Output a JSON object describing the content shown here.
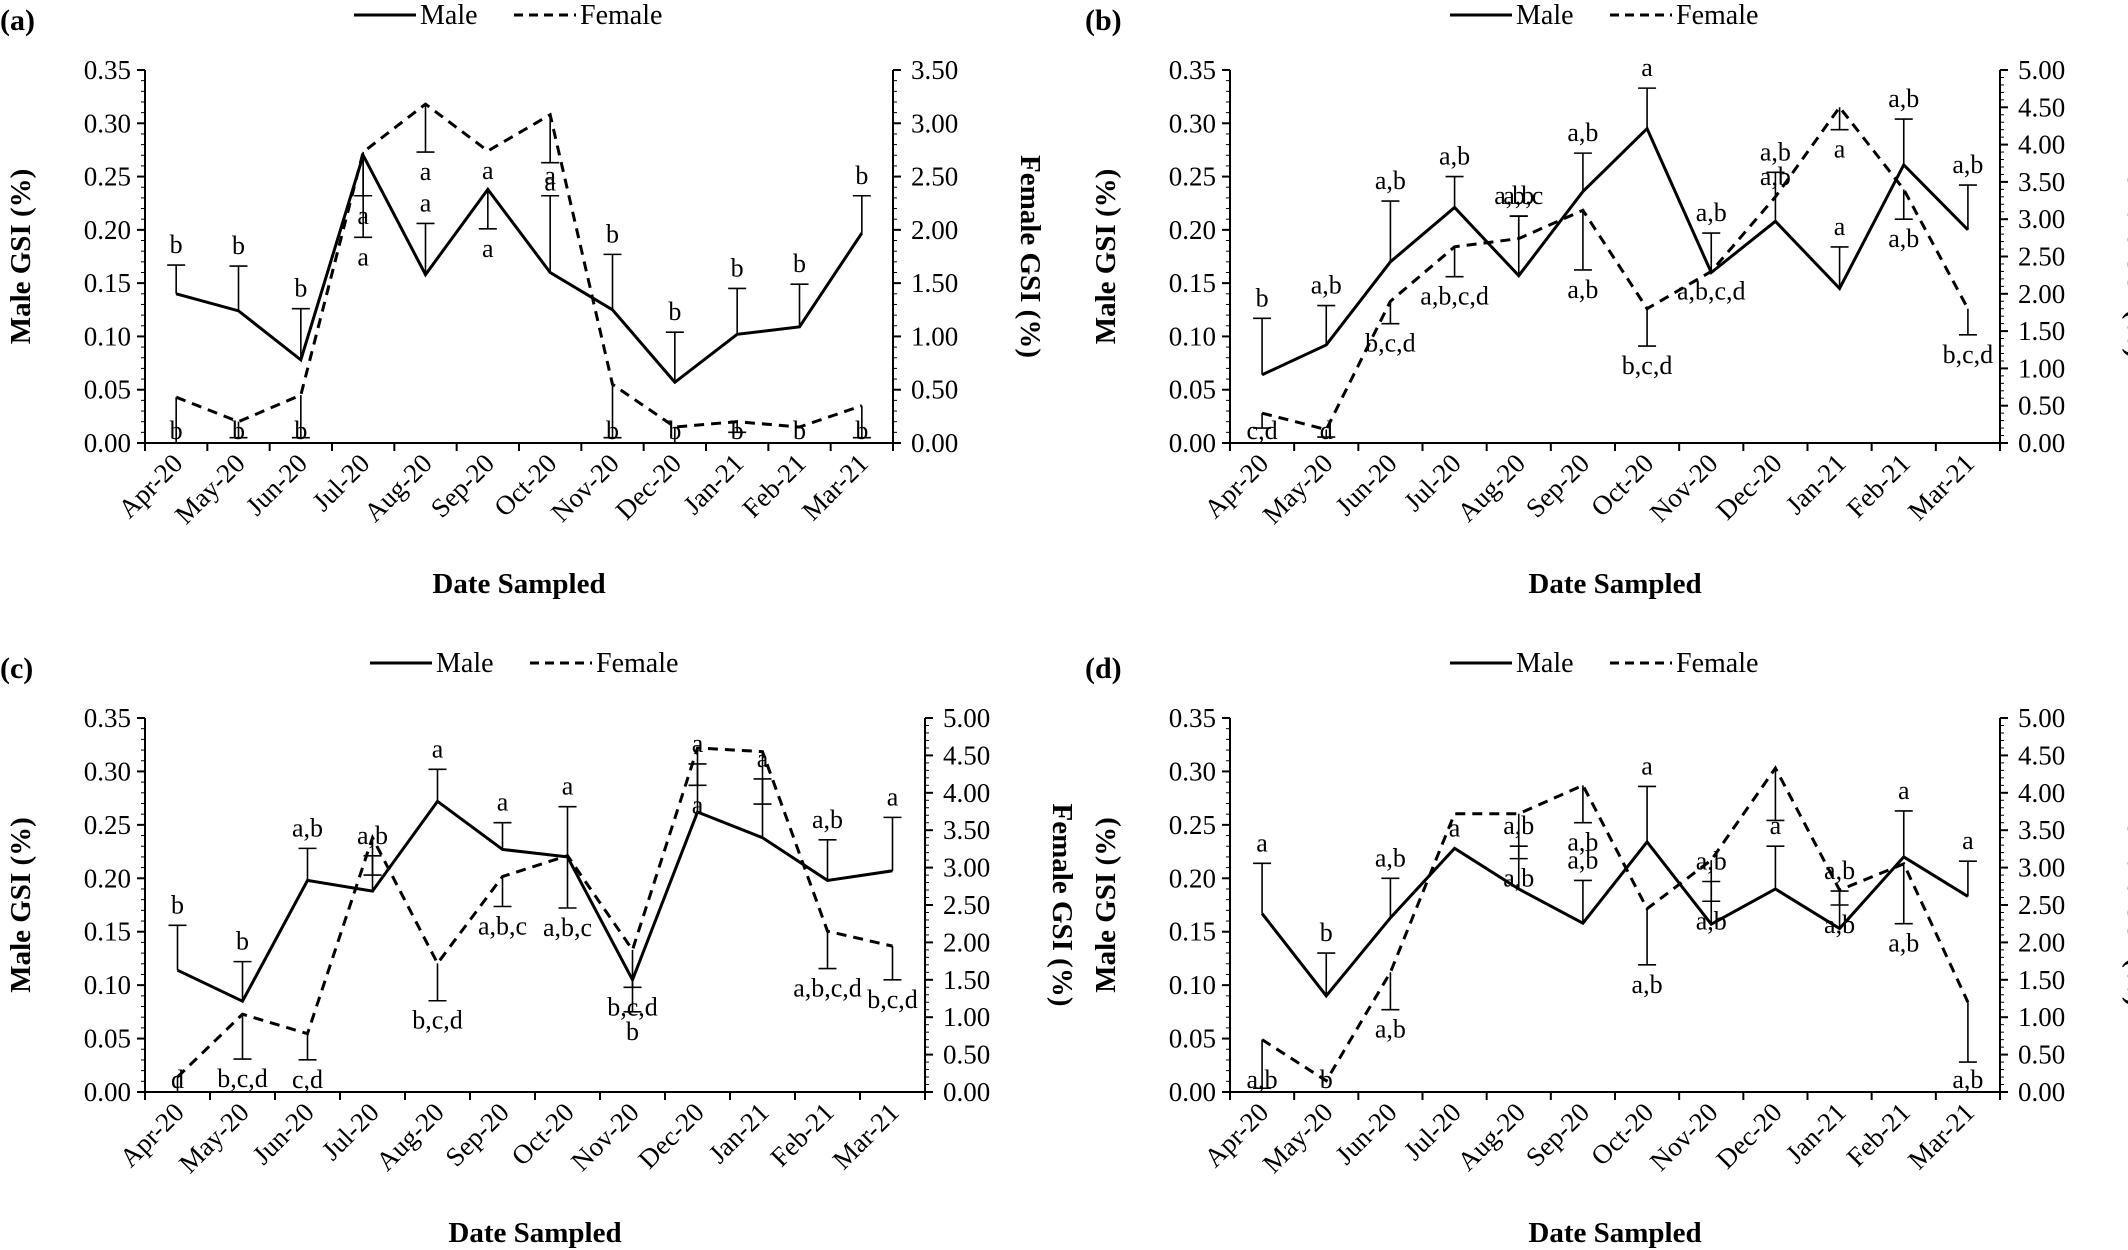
{
  "chart_data": [
    {
      "type": "line",
      "panel_label": "(a)",
      "xlabel": "Date Sampled",
      "ylabel": "Male GSI (%)",
      "y2label": "Female GSI (%)",
      "categories": [
        "Apr-20",
        "May-20",
        "Jun-20",
        "Jul-20",
        "Aug-20",
        "Sep-20",
        "Oct-20",
        "Nov-20",
        "Dec-20",
        "Jan-21",
        "Feb-21",
        "Mar-21"
      ],
      "ylim": [
        0,
        0.35
      ],
      "y2lim": [
        0,
        3.5
      ],
      "yticks": [
        "0.00",
        "0.05",
        "0.10",
        "0.15",
        "0.20",
        "0.25",
        "0.30",
        "0.35"
      ],
      "y2ticks": [
        "0.00",
        "0.50",
        "1.00",
        "1.50",
        "2.00",
        "2.50",
        "3.00",
        "3.50"
      ],
      "grid": false,
      "legend_position": "top-center",
      "series": [
        {
          "name": "Male",
          "axis": "left",
          "style": "solid",
          "values": [
            0.14,
            0.124,
            0.078,
            0.27,
            0.158,
            0.238,
            0.16,
            0.125,
            0.057,
            0.102,
            0.109,
            0.197
          ],
          "error": [
            0.027,
            0.042,
            0.048,
            0.038,
            0.048,
            0.037,
            0.072,
            0.052,
            0.047,
            0.043,
            0.04,
            0.035
          ],
          "error_dir": [
            "up",
            "up",
            "up",
            "down",
            "up",
            "down",
            "up",
            "up",
            "up",
            "up",
            "up",
            "up"
          ],
          "labels": [
            "b",
            "b",
            "b",
            "a",
            "a",
            "a",
            "a",
            "b",
            "b",
            "b",
            "b",
            "b"
          ]
        },
        {
          "name": "Female",
          "axis": "right",
          "style": "dashed",
          "values": [
            0.43,
            0.2,
            0.45,
            2.73,
            3.18,
            2.74,
            3.08,
            0.55,
            0.15,
            0.2,
            0.15,
            0.35
          ],
          "error": [
            0.43,
            0.15,
            0.4,
            0.8,
            0.45,
            0.0,
            0.45,
            0.5,
            0.15,
            0.1,
            0.0,
            0.3
          ],
          "error_dir": [
            "down",
            "down",
            "down",
            "down",
            "down",
            "down",
            "down",
            "down",
            "down",
            "down",
            "down",
            "down"
          ],
          "labels": [
            "b",
            "b",
            "b",
            "a",
            "a",
            "a",
            "a",
            "b",
            "b",
            "b",
            "b",
            "b"
          ]
        }
      ]
    },
    {
      "type": "line",
      "panel_label": "(b)",
      "xlabel": "Date Sampled",
      "ylabel": "Male GSI (%)",
      "y2label": "Female GSI (%)",
      "categories": [
        "Apr-20",
        "May-20",
        "Jun-20",
        "Jul-20",
        "Aug-20",
        "Sep-20",
        "Oct-20",
        "Nov-20",
        "Dec-20",
        "Jan-21",
        "Feb-21",
        "Mar-21"
      ],
      "ylim": [
        0,
        0.35
      ],
      "y2lim": [
        0,
        5
      ],
      "yticks": [
        "0.00",
        "0.05",
        "0.10",
        "0.15",
        "0.20",
        "0.25",
        "0.30",
        "0.35"
      ],
      "y2ticks": [
        "0.00",
        "0.50",
        "1.00",
        "1.50",
        "2.00",
        "2.50",
        "3.00",
        "3.50",
        "4.00",
        "4.50",
        "5.00"
      ],
      "grid": false,
      "legend_position": "top-center",
      "series": [
        {
          "name": "Male",
          "axis": "left",
          "style": "solid",
          "values": [
            0.064,
            0.092,
            0.17,
            0.221,
            0.157,
            0.236,
            0.295,
            0.16,
            0.208,
            0.145,
            0.261,
            0.2
          ],
          "error": [
            0.053,
            0.037,
            0.057,
            0.029,
            0.056,
            0.036,
            0.038,
            0.037,
            0.046,
            0.039,
            0.043,
            0.042
          ],
          "error_dir": [
            "up",
            "up",
            "up",
            "up",
            "up",
            "up",
            "up",
            "up",
            "up",
            "up",
            "up",
            "up"
          ],
          "labels": [
            "b",
            "a,b",
            "a,b",
            "a,b",
            "a,b",
            "a,b",
            "a",
            "a,b",
            "a,b",
            "a",
            "a,b",
            "a,b"
          ]
        },
        {
          "name": "Female",
          "axis": "right",
          "style": "dashed",
          "values": [
            0.4,
            0.18,
            1.9,
            2.63,
            2.74,
            3.12,
            1.8,
            2.3,
            3.3,
            4.5,
            3.4,
            1.8
          ],
          "error": [
            0.2,
            0.1,
            0.3,
            0.4,
            0.3,
            0.8,
            0.5,
            0.0,
            0.0,
            0.3,
            0.4,
            0.35
          ],
          "error_dir": [
            "down",
            "down",
            "down",
            "down",
            "up",
            "down",
            "down",
            "down",
            "up",
            "down",
            "down",
            "down"
          ],
          "labels": [
            "c,d",
            "d",
            "b,c,d",
            "a,b,c,d",
            "a,b,c",
            "a,b",
            "b,c,d",
            "a,b,c,d",
            "a,b",
            "a",
            "a,b",
            "b,c,d"
          ]
        }
      ]
    },
    {
      "type": "line",
      "panel_label": "(c)",
      "xlabel": "Date Sampled",
      "ylabel": "Male GSI (%)",
      "y2label": "Female GSI (%)",
      "categories": [
        "Apr-20",
        "May-20",
        "Jun-20",
        "Jul-20",
        "Aug-20",
        "Sep-20",
        "Oct-20",
        "Nov-20",
        "Dec-20",
        "Jan-21",
        "Feb-21",
        "Mar-21"
      ],
      "ylim": [
        0,
        0.35
      ],
      "y2lim": [
        0,
        5
      ],
      "yticks": [
        "0.00",
        "0.05",
        "0.10",
        "0.15",
        "0.20",
        "0.25",
        "0.30",
        "0.35"
      ],
      "y2ticks": [
        "0.00",
        "0.50",
        "1.00",
        "1.50",
        "2.00",
        "2.50",
        "3.00",
        "3.50",
        "4.00",
        "4.50",
        "5.00"
      ],
      "grid": false,
      "legend_position": "top-center",
      "series": [
        {
          "name": "Male",
          "axis": "left",
          "style": "solid",
          "values": [
            0.114,
            0.085,
            0.198,
            0.188,
            0.272,
            0.227,
            0.22,
            0.105,
            0.262,
            0.238,
            0.198,
            0.207
          ],
          "error": [
            0.042,
            0.037,
            0.03,
            0.033,
            0.03,
            0.025,
            0.047,
            0.03,
            0.045,
            0.055,
            0.038,
            0.05
          ],
          "error_dir": [
            "up",
            "up",
            "up",
            "up",
            "up",
            "up",
            "up",
            "down",
            "up",
            "up",
            "up",
            "up"
          ],
          "labels": [
            "b",
            "b",
            "a,b",
            "a,b",
            "a",
            "a",
            "a",
            "b",
            "a",
            "a",
            "a,b",
            "a"
          ]
        },
        {
          "name": "Female",
          "axis": "right",
          "style": "dashed",
          "values": [
            0.2,
            1.04,
            0.78,
            3.4,
            1.72,
            2.88,
            3.16,
            1.9,
            4.6,
            4.55,
            2.15,
            1.95
          ],
          "error": [
            0.2,
            0.6,
            0.35,
            0.5,
            0.5,
            0.4,
            0.7,
            0.5,
            0.5,
            0.7,
            0.5,
            0.45
          ],
          "error_dir": [
            "down",
            "down",
            "down",
            "down",
            "down",
            "down",
            "down",
            "down",
            "down",
            "down",
            "down",
            "down"
          ],
          "labels": [
            "d",
            "b,c,d",
            "c,d",
            "",
            "b,c,d",
            "a,b,c",
            "a,b,c",
            "b,c,d",
            "a",
            "",
            "a,b,c,d",
            "b,c,d"
          ]
        }
      ]
    },
    {
      "type": "line",
      "panel_label": "(d)",
      "xlabel": "Date Sampled",
      "ylabel": "Male GSI (%)",
      "y2label": "Female GSI (%)",
      "categories": [
        "Apr-20",
        "May-20",
        "Jun-20",
        "Jul-20",
        "Aug-20",
        "Sep-20",
        "Oct-20",
        "Nov-20",
        "Dec-20",
        "Jan-21",
        "Feb-21",
        "Mar-21"
      ],
      "ylim": [
        0,
        0.35
      ],
      "y2lim": [
        0,
        5
      ],
      "yticks": [
        "0.00",
        "0.05",
        "0.10",
        "0.15",
        "0.20",
        "0.25",
        "0.30",
        "0.35"
      ],
      "y2ticks": [
        "0.00",
        "0.50",
        "1.00",
        "1.50",
        "2.00",
        "2.50",
        "3.00",
        "3.50",
        "4.00",
        "4.50",
        "5.00"
      ],
      "grid": false,
      "legend_position": "top-center",
      "series": [
        {
          "name": "Male",
          "axis": "left",
          "style": "solid",
          "values": [
            0.167,
            0.09,
            0.163,
            0.228,
            0.19,
            0.158,
            0.234,
            0.157,
            0.19,
            0.153,
            0.22,
            0.183
          ],
          "error": [
            0.047,
            0.04,
            0.037,
            0.0,
            0.04,
            0.04,
            0.052,
            0.04,
            0.04,
            0.035,
            0.043,
            0.033
          ],
          "error_dir": [
            "up",
            "up",
            "up",
            "up",
            "up",
            "up",
            "up",
            "up",
            "up",
            "up",
            "up",
            "up"
          ],
          "labels": [
            "a",
            "b",
            "a,b",
            "a",
            "a,b",
            "a,b",
            "a",
            "a,b",
            "a",
            "a,b",
            "a",
            "a"
          ]
        },
        {
          "name": "Female",
          "axis": "right",
          "style": "dashed",
          "values": [
            0.7,
            0.15,
            1.6,
            3.72,
            3.72,
            4.1,
            2.45,
            3.1,
            4.33,
            2.7,
            3.05,
            1.2
          ],
          "error": [
            0.65,
            0.0,
            0.5,
            0.0,
            0.6,
            0.5,
            0.75,
            0.55,
            0.7,
            0.2,
            0.8,
            0.8
          ],
          "error_dir": [
            "down",
            "down",
            "down",
            "down",
            "down",
            "down",
            "down",
            "down",
            "down",
            "down",
            "down",
            "down"
          ],
          "labels": [
            "a,b",
            "b",
            "a,b",
            "",
            "a,b",
            "a,b",
            "a,b",
            "a,b",
            "",
            "a,b",
            "a,b",
            "a,b"
          ]
        }
      ]
    }
  ]
}
